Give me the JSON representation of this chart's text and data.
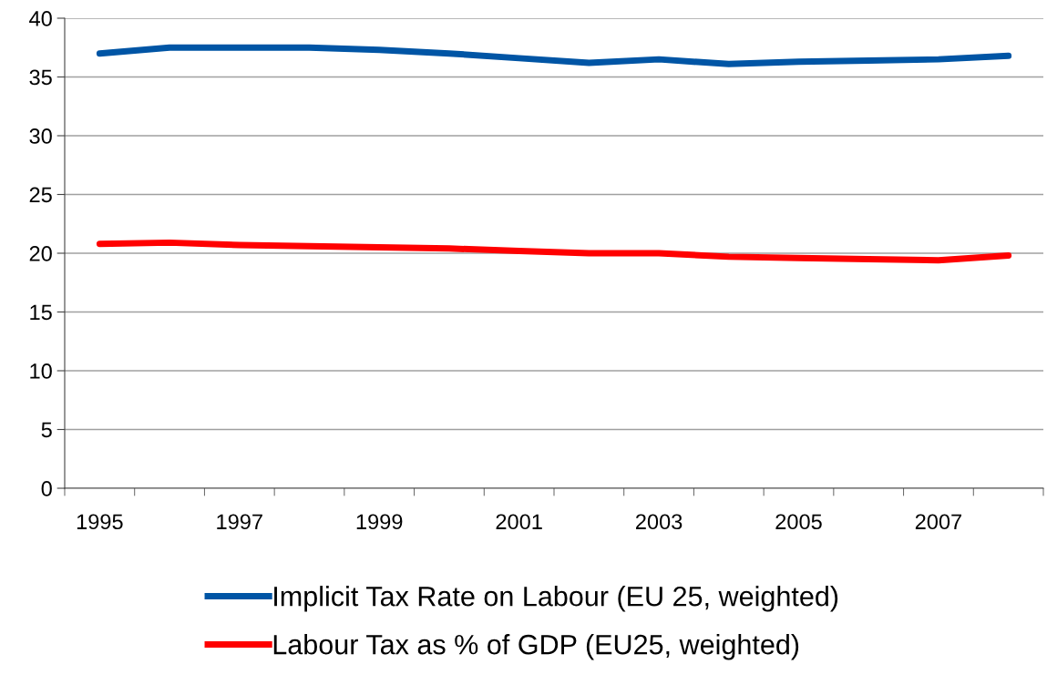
{
  "chart_data": {
    "type": "line",
    "categories": [
      "1995",
      null,
      "1997",
      null,
      "1999",
      null,
      "2001",
      null,
      "2003",
      null,
      "2005",
      null,
      "2007",
      null
    ],
    "series": [
      {
        "name": "Implicit Tax Rate on Labour (EU 25, weighted)",
        "color": "#0055a5",
        "values": [
          37.0,
          37.5,
          37.5,
          37.5,
          37.3,
          37.0,
          36.6,
          36.2,
          36.5,
          36.1,
          36.3,
          36.4,
          36.5,
          36.8
        ]
      },
      {
        "name": "Labour Tax as % of GDP (EU25, weighted)",
        "color": "#ff0000",
        "values": [
          20.8,
          20.9,
          20.7,
          20.6,
          20.5,
          20.4,
          20.2,
          20.0,
          20.0,
          19.7,
          19.6,
          19.5,
          19.4,
          19.8
        ]
      }
    ],
    "ylim": [
      0,
      40
    ],
    "yticks": [
      0,
      5,
      10,
      15,
      20,
      25,
      30,
      35,
      40
    ],
    "grid": "y",
    "legend": "bottom",
    "marker": "none",
    "line_style": "solid"
  }
}
